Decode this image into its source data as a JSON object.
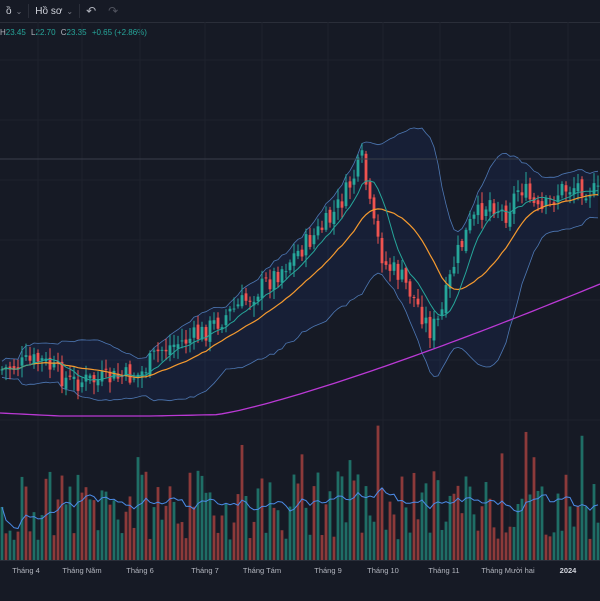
{
  "toolbar": {
    "symbol_fragment": "ồ",
    "profile_label": "Hồ sơ",
    "undo_icon": "undo-icon",
    "redo_icon": "redo-icon"
  },
  "legend": {
    "high_key": "H",
    "high_val": "23.45",
    "low_key": "L",
    "low_val": "22.70",
    "close_key": "C",
    "close_val": "23.35",
    "change": "+0.65 (+2.86%)"
  },
  "colors": {
    "up": "#26a69a",
    "down": "#ef5350",
    "volume_up": "#1f6e66",
    "volume_down": "#8c3a3a",
    "ma_fast": "#26a69a",
    "ma_slow": "#f59a2f",
    "ma_long": "#ba39d4",
    "band": "#5b8fd6",
    "volume_ma": "#4c8ce8"
  },
  "x_axis": {
    "labels": [
      "Tháng 4",
      "Tháng Năm",
      "Tháng 6",
      "Tháng 7",
      "Tháng Tám",
      "Tháng 9",
      "Tháng 10",
      "Tháng 11",
      "Tháng Mười hai",
      "2024"
    ]
  }
}
